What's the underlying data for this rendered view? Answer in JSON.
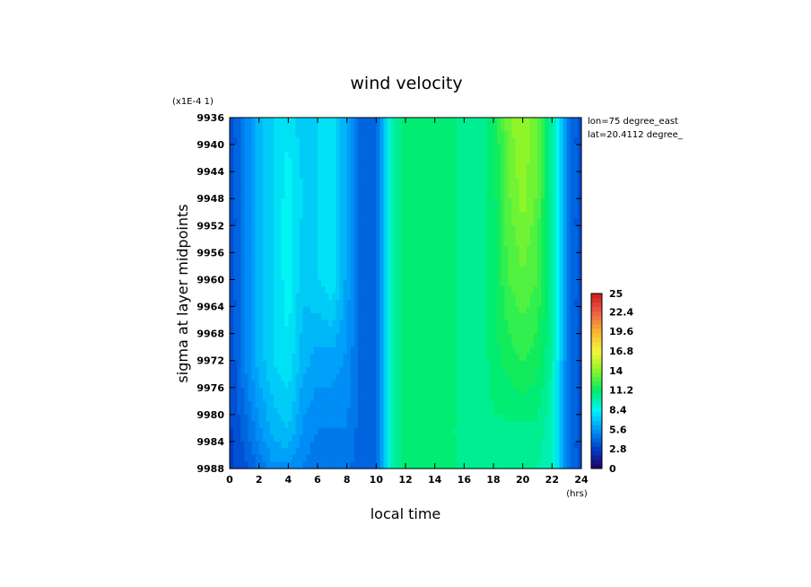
{
  "chart_data": {
    "type": "heatmap",
    "title": "wind velocity",
    "xlabel": "local time",
    "x_unit": "(hrs)",
    "ylabel": "sigma at layer midpoints",
    "y_scale_note": "(x1E-4 1)",
    "annotations": [
      "lon=75 degree_east",
      "lat=20.4112 degree_"
    ],
    "xlim": [
      0,
      24
    ],
    "ylim": [
      9936,
      9988
    ],
    "y_inverted": true,
    "x_ticks": [
      "0",
      "2",
      "4",
      "6",
      "8",
      "10",
      "12",
      "14",
      "16",
      "18",
      "20",
      "22",
      "24"
    ],
    "y_ticks": [
      "9936",
      "9940",
      "9944",
      "9948",
      "9952",
      "9956",
      "9960",
      "9964",
      "9968",
      "9972",
      "9976",
      "9980",
      "9984",
      "9988"
    ],
    "x": [
      0,
      1,
      2,
      3,
      4,
      5,
      6,
      7,
      8,
      9,
      10,
      11,
      12,
      13,
      14,
      15,
      16,
      17,
      18,
      19,
      20,
      21,
      22,
      23,
      24
    ],
    "y": [
      9936,
      9948,
      9960,
      9972,
      9982,
      9988
    ],
    "z": [
      [
        3,
        5,
        6.5,
        7.5,
        8,
        7,
        7.5,
        8,
        6,
        4,
        4,
        9.5,
        11,
        11,
        11,
        11,
        10,
        10,
        11,
        13.5,
        14.5,
        13,
        10,
        5,
        3
      ],
      [
        3,
        5,
        6.5,
        7.5,
        8.5,
        7.5,
        7.5,
        8,
        6,
        4,
        4,
        9.5,
        11,
        11,
        11,
        11,
        10,
        10,
        11,
        13,
        14,
        13,
        10,
        5,
        3
      ],
      [
        3,
        5,
        6.5,
        7.5,
        8.5,
        7,
        7.5,
        8,
        6,
        4,
        4,
        9.5,
        11,
        11,
        11,
        11,
        10,
        10,
        11,
        12.5,
        13,
        12.5,
        10,
        5,
        3
      ],
      [
        3,
        5,
        6.5,
        7.5,
        8,
        6.5,
        6,
        6,
        5.5,
        4,
        4,
        9.5,
        11,
        11,
        11,
        11,
        10,
        10,
        11,
        11.5,
        12,
        11.5,
        10,
        5,
        3
      ],
      [
        3,
        4,
        5.5,
        6.5,
        7,
        5.5,
        5,
        5,
        5,
        4,
        4,
        9.5,
        11,
        11,
        11,
        11,
        10,
        10,
        10.5,
        10.5,
        10.5,
        10.5,
        9.5,
        5,
        3
      ],
      [
        3,
        3.5,
        4.5,
        5.5,
        5.5,
        5,
        4.5,
        4.5,
        4.5,
        4,
        4,
        9.5,
        11,
        11,
        11,
        11,
        10,
        10,
        10,
        10,
        10,
        10,
        9.5,
        5,
        3
      ]
    ],
    "colorbar": {
      "min": 0,
      "max": 25,
      "ticks": [
        "0",
        "2.8",
        "5.6",
        "8.4",
        "11.2",
        "14",
        "16.8",
        "19.6",
        "22.4",
        "25"
      ]
    }
  }
}
